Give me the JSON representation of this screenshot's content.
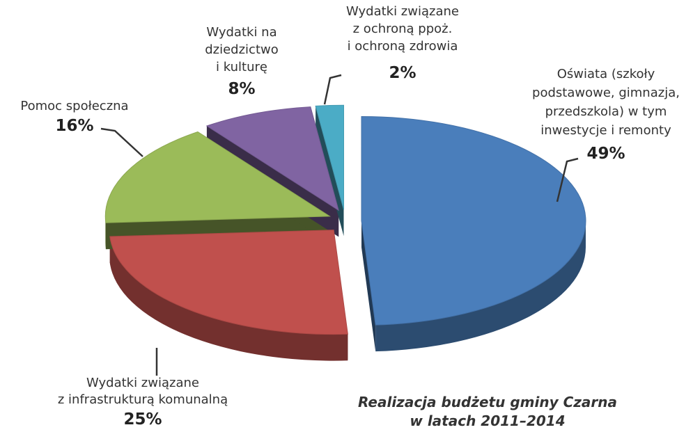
{
  "chart_data": {
    "type": "pie3d",
    "title": [
      "Realizacja budżetu gminy Czarna",
      "w latach 2011–2014"
    ],
    "categories": [
      [
        "Oświata (szkoły",
        "podstawowe, gimnazja,",
        "przedszkola) w tym",
        "inwestycje i remonty"
      ],
      [
        "Wydatki związane",
        "z infrastrukturą komunalną"
      ],
      [
        "Pomoc społeczna"
      ],
      [
        "Wydatki na",
        "dziedzictwo",
        "i kulturę"
      ],
      [
        "Wydatki związane",
        "z ochroną ppoż.",
        "i ochroną zdrowia"
      ]
    ],
    "values": [
      49,
      25,
      16,
      8,
      2
    ],
    "value_labels": [
      "49%",
      "25%",
      "16%",
      "8%",
      "2%"
    ],
    "colors": [
      "#4a7ebb",
      "#c0504d",
      "#9bbb59",
      "#8064a2",
      "#4bacc6"
    ]
  }
}
